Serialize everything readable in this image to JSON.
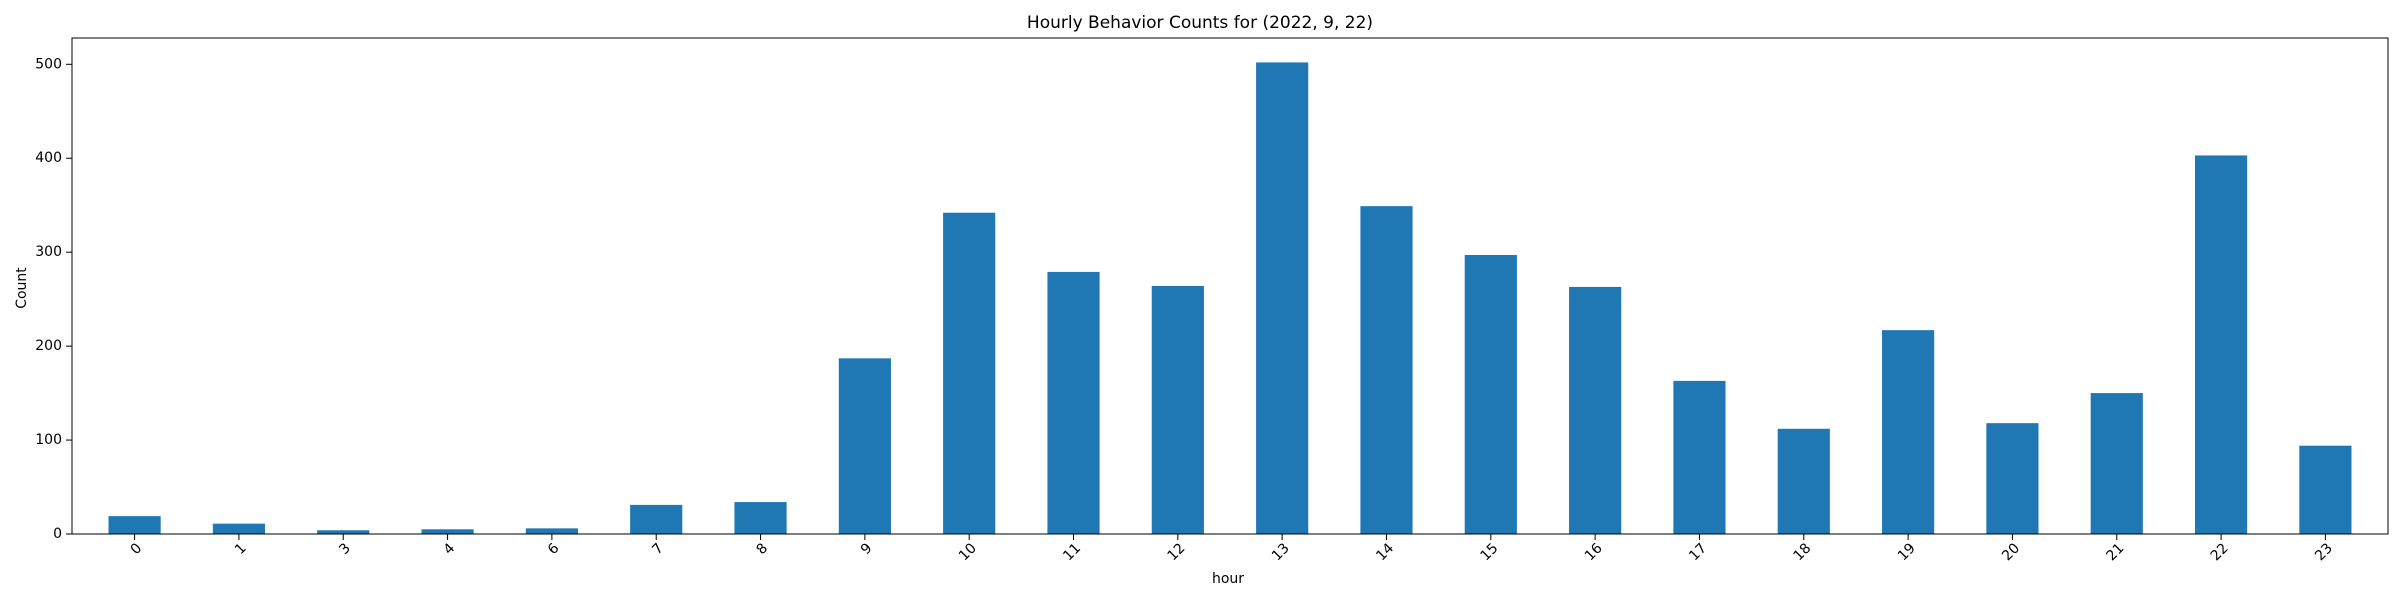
{
  "chart_data": {
    "type": "bar",
    "title": "Hourly Behavior Counts for (2022, 9, 22)",
    "xlabel": "hour",
    "ylabel": "Count",
    "categories": [
      "0",
      "1",
      "3",
      "4",
      "6",
      "7",
      "8",
      "9",
      "10",
      "11",
      "12",
      "13",
      "14",
      "15",
      "16",
      "17",
      "18",
      "19",
      "20",
      "21",
      "22",
      "23"
    ],
    "values": [
      19,
      11,
      4,
      5,
      6,
      31,
      34,
      187,
      342,
      279,
      264,
      502,
      349,
      297,
      263,
      163,
      112,
      217,
      118,
      150,
      403,
      94
    ],
    "yticks": [
      "0",
      "100",
      "200",
      "300",
      "400",
      "500"
    ],
    "ylim": [
      0,
      528
    ],
    "bar_color": "#1f77b4",
    "grid": false,
    "xtick_rotation": "45deg"
  }
}
